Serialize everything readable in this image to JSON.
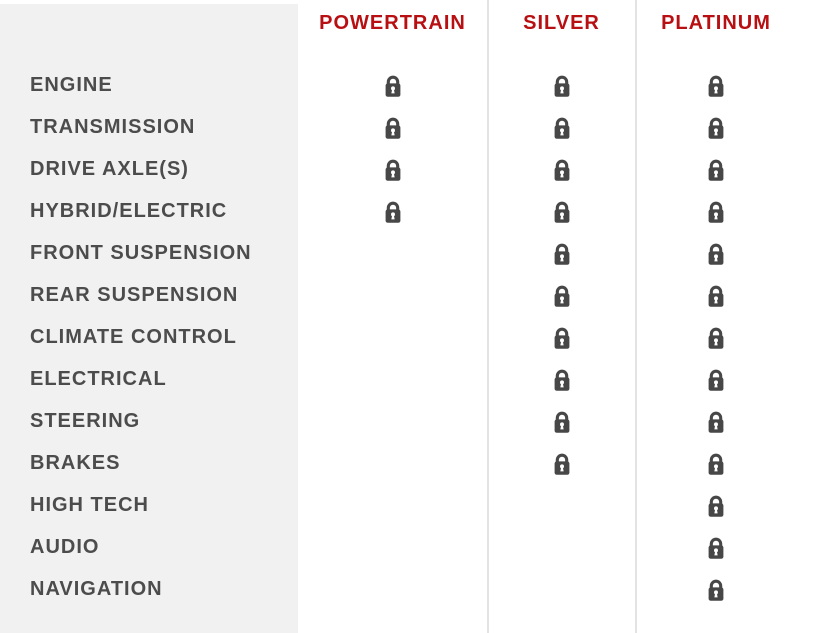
{
  "table": {
    "plans": [
      {
        "label": "POWERTRAIN"
      },
      {
        "label": "SILVER"
      },
      {
        "label": "PLATINUM"
      }
    ],
    "rows": [
      {
        "label": "ENGINE",
        "covered": [
          true,
          true,
          true
        ]
      },
      {
        "label": "TRANSMISSION",
        "covered": [
          true,
          true,
          true
        ]
      },
      {
        "label": "DRIVE AXLE(S)",
        "covered": [
          true,
          true,
          true
        ]
      },
      {
        "label": "HYBRID/ELECTRIC",
        "covered": [
          true,
          true,
          true
        ]
      },
      {
        "label": "FRONT SUSPENSION",
        "covered": [
          false,
          true,
          true
        ]
      },
      {
        "label": "REAR SUSPENSION",
        "covered": [
          false,
          true,
          true
        ]
      },
      {
        "label": "CLIMATE CONTROL",
        "covered": [
          false,
          true,
          true
        ]
      },
      {
        "label": "ELECTRICAL",
        "covered": [
          false,
          true,
          true
        ]
      },
      {
        "label": "STEERING",
        "covered": [
          false,
          true,
          true
        ]
      },
      {
        "label": "BRAKES",
        "covered": [
          false,
          true,
          true
        ]
      },
      {
        "label": "HIGH TECH",
        "covered": [
          false,
          false,
          true
        ]
      },
      {
        "label": "AUDIO",
        "covered": [
          false,
          false,
          true
        ]
      },
      {
        "label": "NAVIGATION",
        "covered": [
          false,
          false,
          true
        ]
      }
    ],
    "covered_icon": "lock-icon"
  },
  "colors": {
    "header_red": "#b80f12",
    "label_gray": "#4c4c4c",
    "panel_gray": "#f1f1f1",
    "divider": "#e3e3e3",
    "lock": "#474747"
  }
}
